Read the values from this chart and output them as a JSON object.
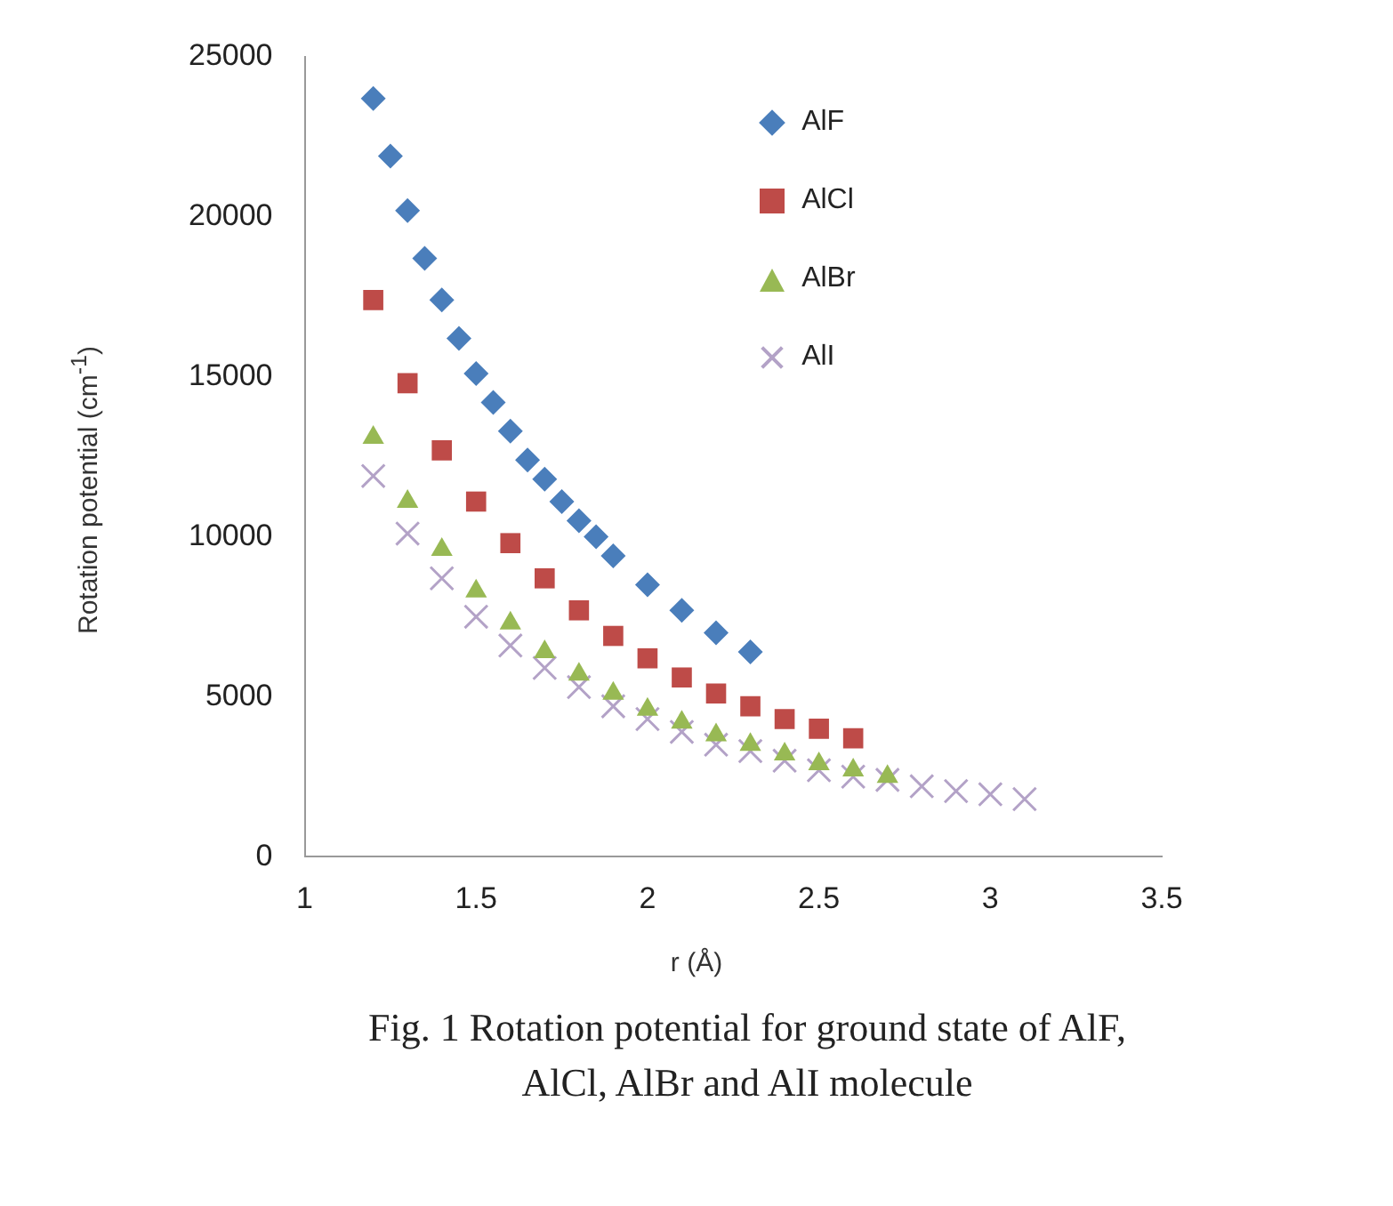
{
  "chart_data": {
    "type": "scatter",
    "title": "Fig. 1 Rotation potential for ground state of AlF, AlCl, AlBr and AlI molecule",
    "xlabel": "r (Å)",
    "ylabel": "Rotation potential (cm$^{-1}$)",
    "xlim": [
      1,
      3.5
    ],
    "xticks": [
      1,
      1.5,
      2,
      2.5,
      3,
      3.5
    ],
    "ylim": [
      0,
      25000
    ],
    "yticks": [
      0,
      5000,
      10000,
      15000,
      20000,
      25000
    ],
    "grid": false,
    "legend": "top right",
    "series": [
      {
        "name": "AlF",
        "color": "#4a7ebb",
        "marker": "diamond",
        "x": [
          1.2,
          1.25,
          1.3,
          1.35,
          1.4,
          1.45,
          1.5,
          1.55,
          1.6,
          1.65,
          1.7,
          1.75,
          1.8,
          1.85,
          1.9,
          2.0,
          2.1,
          2.2,
          2.3
        ],
        "values": [
          23700,
          21900,
          20200,
          18700,
          17400,
          16200,
          15100,
          14200,
          13300,
          12400,
          11800,
          11100,
          10500,
          10000,
          9400,
          8500,
          7700,
          7000,
          6400
        ]
      },
      {
        "name": "AlCl",
        "color": "#be4b48",
        "marker": "square",
        "x": [
          1.2,
          1.3,
          1.4,
          1.5,
          1.6,
          1.7,
          1.8,
          1.9,
          2.0,
          2.1,
          2.2,
          2.3,
          2.4,
          2.5,
          2.6
        ],
        "values": [
          17400,
          14800,
          12700,
          11100,
          9800,
          8700,
          7700,
          6900,
          6200,
          5600,
          5100,
          4700,
          4300,
          4000,
          3700
        ]
      },
      {
        "name": "AlBr",
        "color": "#98b954",
        "marker": "triangle",
        "x": [
          1.2,
          1.3,
          1.4,
          1.5,
          1.6,
          1.7,
          1.8,
          1.9,
          2.0,
          2.1,
          2.2,
          2.3,
          2.4,
          2.5,
          2.6,
          2.7
        ],
        "values": [
          13100,
          11100,
          9600,
          8300,
          7300,
          6400,
          5700,
          5100,
          4600,
          4200,
          3800,
          3500,
          3200,
          2900,
          2700,
          2500
        ]
      },
      {
        "name": "AlI",
        "color": "#b3a2c7",
        "marker": "cross",
        "x": [
          1.2,
          1.3,
          1.4,
          1.5,
          1.6,
          1.7,
          1.8,
          1.9,
          2.0,
          2.1,
          2.2,
          2.3,
          2.4,
          2.5,
          2.6,
          2.7,
          2.8,
          2.9,
          3.0,
          3.1
        ],
        "values": [
          11900,
          10100,
          8700,
          7500,
          6600,
          5900,
          5300,
          4700,
          4300,
          3900,
          3500,
          3300,
          3000,
          2700,
          2500,
          2400,
          2200,
          2050,
          1950,
          1800
        ]
      }
    ]
  }
}
